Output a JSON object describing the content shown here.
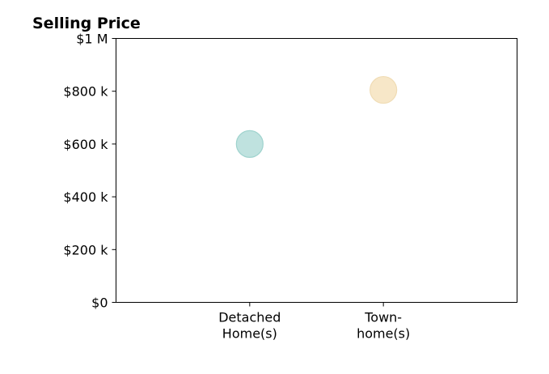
{
  "chart_data": {
    "type": "scatter",
    "title": "Selling Price",
    "xlabel": "",
    "ylabel": "",
    "categories": [
      [
        "Detached",
        "Home(s)"
      ],
      [
        "Town-",
        "home(s)"
      ]
    ],
    "points": [
      {
        "category_index": 0,
        "value": 600000,
        "color": "#bfe2df",
        "edge_color": "#9fd3ce"
      },
      {
        "category_index": 1,
        "value": 805000,
        "color": "#f7e7c8",
        "edge_color": "#f0dcb4"
      }
    ],
    "ylim": [
      0,
      1000000
    ],
    "xlim": [
      -1,
      2
    ],
    "y_ticks": [
      {
        "value": 0,
        "label": "$0"
      },
      {
        "value": 200000,
        "label": "$200 k"
      },
      {
        "value": 400000,
        "label": "$400 k"
      },
      {
        "value": 600000,
        "label": "$600 k"
      },
      {
        "value": 800000,
        "label": "$800 k"
      },
      {
        "value": 1000000,
        "label": "$1 M"
      }
    ],
    "grid": false,
    "legend": "none"
  }
}
